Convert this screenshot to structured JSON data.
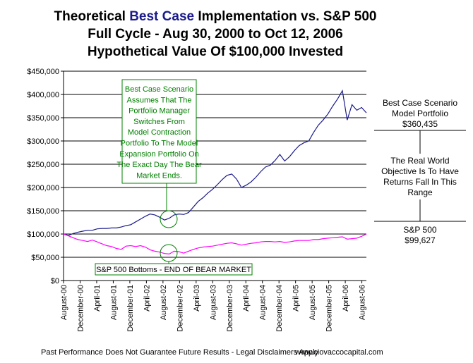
{
  "title": {
    "line1_pre": "Theoretical ",
    "line1_highlight": "Best Case",
    "line1_post": " Implementation vs. S&P 500",
    "line2": "Full Cycle - Aug 30, 2000 to Oct 12, 2006",
    "line3": "Hypothetical Value Of $100,000 Invested"
  },
  "annotations": {
    "best_case_box": [
      "Best Case Scenario",
      "Assumes That The",
      "Portfolio Manager",
      "Switches From",
      "Model Contraction",
      "Portfolio To The Model",
      "Expansion Portfolio On",
      "The Exact Day The Bear",
      "Market Ends."
    ],
    "bottom_box": "S&P 500 Bottoms - END OF BEAR MARKET"
  },
  "side": {
    "best_case_label": "Best Case Scenario\nModel Portfolio\n$360,435",
    "objective": "The Real World\nObjective Is To Have\nReturns Fall In This\nRange",
    "sp_label": "S&P 500\n$99,627"
  },
  "footer": {
    "disclaimer": "Past Performance Does Not Guarantee Future Results - Legal Disclaimers Apply",
    "website": "www.ciovaccocapital.com"
  },
  "colors": {
    "best_case": "#1a1a8c",
    "sp500": "#ff00ff",
    "annotation": "#008000"
  },
  "chart_data": {
    "type": "line",
    "ylim": [
      0,
      450000
    ],
    "yticks": [
      "$0",
      "$50,000",
      "$100,000",
      "$150,000",
      "$200,000",
      "$250,000",
      "$300,000",
      "$350,000",
      "$400,000",
      "$450,000"
    ],
    "xticks": [
      "August-00",
      "December-00",
      "April-01",
      "August-01",
      "December-01",
      "April-02",
      "August-02",
      "December-02",
      "April-03",
      "August-03",
      "December-03",
      "April-04",
      "August-04",
      "December-04",
      "April-05",
      "August-05",
      "December-05",
      "April-06",
      "August-06"
    ],
    "series": [
      {
        "name": "Best Case Scenario Model Portfolio",
        "color": "#1a1a8c",
        "points": [
          [
            0,
            100000
          ],
          [
            1,
            97000
          ],
          [
            2,
            101000
          ],
          [
            3,
            104000
          ],
          [
            4,
            106000
          ],
          [
            5,
            108000
          ],
          [
            6,
            108000
          ],
          [
            7,
            111000
          ],
          [
            8,
            112000
          ],
          [
            9,
            112000
          ],
          [
            10,
            113000
          ],
          [
            11,
            113000
          ],
          [
            12,
            115000
          ],
          [
            13,
            118000
          ],
          [
            14,
            120000
          ],
          [
            15,
            126000
          ],
          [
            16,
            132000
          ],
          [
            17,
            138000
          ],
          [
            18,
            143000
          ],
          [
            19,
            141000
          ],
          [
            20,
            136000
          ],
          [
            21,
            130000
          ],
          [
            22,
            134000
          ],
          [
            23,
            141000
          ],
          [
            24,
            143000
          ],
          [
            25,
            142000
          ],
          [
            26,
            146000
          ],
          [
            27,
            158000
          ],
          [
            28,
            170000
          ],
          [
            29,
            178000
          ],
          [
            30,
            188000
          ],
          [
            31,
            196000
          ],
          [
            32,
            206000
          ],
          [
            33,
            217000
          ],
          [
            34,
            226000
          ],
          [
            35,
            229000
          ],
          [
            36,
            218000
          ],
          [
            37,
            200000
          ],
          [
            38,
            205000
          ],
          [
            39,
            212000
          ],
          [
            40,
            222000
          ],
          [
            41,
            234000
          ],
          [
            42,
            244000
          ],
          [
            43,
            248000
          ],
          [
            44,
            258000
          ],
          [
            45,
            271000
          ],
          [
            46,
            257000
          ],
          [
            47,
            266000
          ],
          [
            48,
            279000
          ],
          [
            49,
            290000
          ],
          [
            50,
            296000
          ],
          [
            51,
            300000
          ],
          [
            52,
            318000
          ],
          [
            53,
            334000
          ],
          [
            54,
            345000
          ],
          [
            55,
            358000
          ],
          [
            56,
            375000
          ],
          [
            57,
            390000
          ],
          [
            58,
            408000
          ],
          [
            59,
            345000
          ],
          [
            60,
            378000
          ],
          [
            61,
            366000
          ],
          [
            62,
            372000
          ],
          [
            63,
            360435
          ]
        ]
      },
      {
        "name": "S&P 500",
        "color": "#ff00ff",
        "points": [
          [
            0,
            100000
          ],
          [
            1,
            96000
          ],
          [
            2,
            92000
          ],
          [
            3,
            88000
          ],
          [
            4,
            86000
          ],
          [
            5,
            84000
          ],
          [
            6,
            87000
          ],
          [
            7,
            83000
          ],
          [
            8,
            79000
          ],
          [
            9,
            75000
          ],
          [
            10,
            73000
          ],
          [
            11,
            69000
          ],
          [
            12,
            67000
          ],
          [
            13,
            74000
          ],
          [
            14,
            75000
          ],
          [
            15,
            73000
          ],
          [
            16,
            75000
          ],
          [
            17,
            72000
          ],
          [
            18,
            66000
          ],
          [
            19,
            63000
          ],
          [
            20,
            61000
          ],
          [
            21,
            58000
          ],
          [
            22,
            57000
          ],
          [
            23,
            63000
          ],
          [
            24,
            62000
          ],
          [
            25,
            59000
          ],
          [
            26,
            63000
          ],
          [
            27,
            67000
          ],
          [
            28,
            70000
          ],
          [
            29,
            72000
          ],
          [
            30,
            73000
          ],
          [
            31,
            74000
          ],
          [
            32,
            76000
          ],
          [
            33,
            78000
          ],
          [
            34,
            80000
          ],
          [
            35,
            81000
          ],
          [
            36,
            79000
          ],
          [
            37,
            76000
          ],
          [
            38,
            78000
          ],
          [
            39,
            80000
          ],
          [
            40,
            81000
          ],
          [
            41,
            83000
          ],
          [
            42,
            84000
          ],
          [
            43,
            84000
          ],
          [
            44,
            83000
          ],
          [
            45,
            84000
          ],
          [
            46,
            82000
          ],
          [
            47,
            83000
          ],
          [
            48,
            85000
          ],
          [
            49,
            86000
          ],
          [
            50,
            86000
          ],
          [
            51,
            86000
          ],
          [
            52,
            88000
          ],
          [
            53,
            88000
          ],
          [
            54,
            90000
          ],
          [
            55,
            91000
          ],
          [
            56,
            92000
          ],
          [
            57,
            93000
          ],
          [
            58,
            94000
          ],
          [
            59,
            89000
          ],
          [
            60,
            90000
          ],
          [
            61,
            91000
          ],
          [
            62,
            95000
          ],
          [
            63,
            99627
          ]
        ]
      }
    ]
  }
}
